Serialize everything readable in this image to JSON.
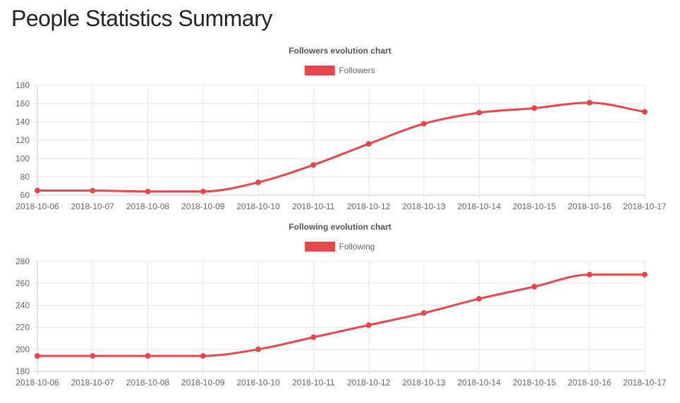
{
  "page": {
    "title": "People Statistics Summary"
  },
  "colors": {
    "line": "#e8464c",
    "grid": "#e5e5e5",
    "axis": "#c8c8c8",
    "text": "#666666",
    "title_text": "#555555"
  },
  "chart_data": [
    {
      "type": "line",
      "title": "Followers evolution chart",
      "legend": "Followers",
      "xlabel": "",
      "ylabel": "",
      "categories": [
        "2018-10-06",
        "2018-10-07",
        "2018-10-08",
        "2018-10-09",
        "2018-10-10",
        "2018-10-11",
        "2018-10-12",
        "2018-10-13",
        "2018-10-14",
        "2018-10-15",
        "2018-10-16",
        "2018-10-17"
      ],
      "values": [
        65,
        65,
        64,
        64,
        74,
        93,
        116,
        138,
        150,
        155,
        161,
        151
      ],
      "ylim": [
        60,
        180
      ],
      "yticks": [
        60,
        80,
        100,
        120,
        140,
        160,
        180
      ],
      "grid": true,
      "legend_position": "top-center"
    },
    {
      "type": "line",
      "title": "Following evolution chart",
      "legend": "Following",
      "xlabel": "",
      "ylabel": "",
      "categories": [
        "2018-10-06",
        "2018-10-07",
        "2018-10-08",
        "2018-10-09",
        "2018-10-10",
        "2018-10-11",
        "2018-10-12",
        "2018-10-13",
        "2018-10-14",
        "2018-10-15",
        "2018-10-16",
        "2018-10-17"
      ],
      "values": [
        194,
        194,
        194,
        194,
        200,
        211,
        222,
        233,
        246,
        257,
        268,
        268
      ],
      "ylim": [
        180,
        280
      ],
      "yticks": [
        180,
        200,
        220,
        240,
        260,
        280
      ],
      "grid": true,
      "legend_position": "top-center"
    }
  ]
}
